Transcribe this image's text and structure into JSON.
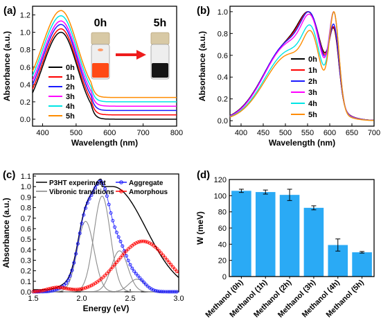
{
  "chart_data": [
    {
      "panel": "(a)",
      "type": "line",
      "xlabel": "Wavelength (nm)",
      "ylabel": "Absorbance (a.u.)",
      "xlim": [
        370,
        800
      ],
      "ylim": [
        -0.08,
        1.3
      ],
      "xticks": [
        400,
        500,
        600,
        700,
        800
      ],
      "yticks": [
        0.0,
        0.2,
        0.4,
        0.6,
        0.8,
        1.0,
        1.2
      ],
      "legend_position": "center-left",
      "inset": {
        "from_label": "0h",
        "to_label": "5h"
      },
      "series": [
        {
          "name": "0h",
          "color": "#000000",
          "peak_x": 452,
          "peak": 1.0,
          "tail": 0.0
        },
        {
          "name": "1h",
          "color": "#ff0000",
          "peak_x": 452,
          "peak": 1.04,
          "tail": 0.05
        },
        {
          "name": "2h",
          "color": "#1a1aff",
          "peak_x": 452,
          "peak": 1.09,
          "tail": 0.1
        },
        {
          "name": "3h",
          "color": "#ff00ff",
          "peak_x": 452,
          "peak": 1.13,
          "tail": 0.15
        },
        {
          "name": "4h",
          "color": "#00e5e5",
          "peak_x": 452,
          "peak": 1.19,
          "tail": 0.2
        },
        {
          "name": "5h",
          "color": "#ff8c00",
          "peak_x": 452,
          "peak": 1.25,
          "tail": 0.25
        }
      ]
    },
    {
      "panel": "(b)",
      "type": "line",
      "xlabel": "Wavelength (nm)",
      "ylabel": "Absorbance (a.u.)",
      "xlim": [
        375,
        700
      ],
      "ylim": [
        -0.05,
        1.05
      ],
      "xticks": [
        400,
        450,
        500,
        550,
        600,
        650,
        700
      ],
      "yticks": [
        0.0,
        0.2,
        0.4,
        0.6,
        0.8,
        1.0
      ],
      "legend_position": "bottom-center",
      "series": [
        {
          "name": "0h",
          "color": "#000000",
          "shoulder_606": 0.57
        },
        {
          "name": "1h",
          "color": "#ff0000",
          "shoulder_606": 0.59
        },
        {
          "name": "2h",
          "color": "#1a1aff",
          "shoulder_606": 0.62
        },
        {
          "name": "3h",
          "color": "#ff00ff",
          "shoulder_606": 0.74
        },
        {
          "name": "4h",
          "color": "#00e5e5",
          "shoulder_606": 0.84
        },
        {
          "name": "5h",
          "color": "#ff8c00",
          "shoulder_606": 0.9
        }
      ]
    },
    {
      "panel": "(c)",
      "type": "line",
      "xlabel": "Energy (eV)",
      "ylabel": "Absorbance (a.u.)",
      "xlim": [
        1.5,
        3.0
      ],
      "ylim": [
        0.0,
        1.12
      ],
      "xticks": [
        1.5,
        2.0,
        2.5,
        3.0
      ],
      "yticks": [
        0.0,
        0.1,
        0.2,
        0.3,
        0.4,
        0.5,
        0.6,
        0.7,
        0.8,
        0.9,
        1.0,
        1.1
      ],
      "legend_position": "top",
      "series": [
        {
          "name": "P3HT experiment",
          "color": "#000000"
        },
        {
          "name": "Vibronic transitions",
          "color": "#808080"
        },
        {
          "name": "Aggregate",
          "color": "#1a1aff"
        },
        {
          "name": "Amorphous",
          "color": "#ff0000"
        }
      ],
      "vibronic_peaks": [
        {
          "x": 1.84,
          "height": 0.04
        },
        {
          "x": 2.04,
          "height": 0.67
        },
        {
          "x": 2.21,
          "height": 0.91
        },
        {
          "x": 2.39,
          "height": 0.39
        },
        {
          "x": 2.57,
          "height": 0.12
        }
      ]
    },
    {
      "panel": "(d)",
      "type": "bar",
      "xlabel": "",
      "ylabel": "W (meV)",
      "ylim": [
        0,
        120
      ],
      "yticks": [
        0,
        20,
        40,
        60,
        80,
        100,
        120
      ],
      "bar_color": "#2aaaf5",
      "categories": [
        "Methanol (0h)",
        "Methanol (1h)",
        "Methanol (2h)",
        "Methanol (3h)",
        "Methanol (4h)",
        "Methanol (5h)"
      ],
      "values": [
        106,
        104.5,
        101,
        85,
        39,
        30
      ],
      "errors": [
        2,
        2.5,
        7,
        2.5,
        7.5,
        1
      ]
    }
  ]
}
